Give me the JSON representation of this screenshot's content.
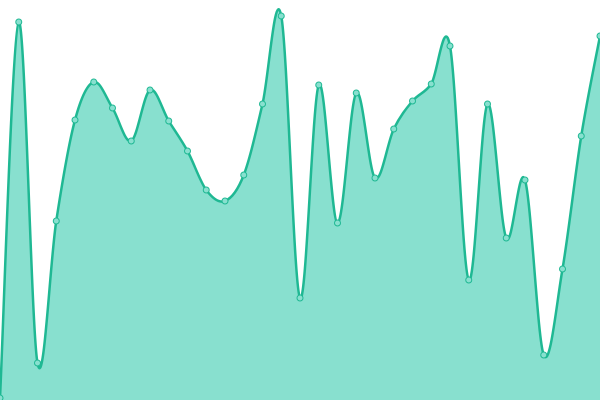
{
  "chart_data": {
    "type": "area",
    "x": [
      0,
      1,
      2,
      3,
      4,
      5,
      6,
      7,
      8,
      9,
      10,
      11,
      12,
      13,
      14,
      15,
      16,
      17,
      18,
      19,
      20,
      21,
      22,
      23,
      24,
      25,
      26,
      27,
      28,
      29,
      30,
      31,
      32
    ],
    "series": [
      {
        "color": "#1fb893",
        "fill": "#88e0cf",
        "values": [
          2,
          378,
          37,
          179,
          280,
          318,
          292,
          259,
          310,
          279,
          249,
          210,
          199,
          225,
          296,
          384,
          102,
          315,
          177,
          307,
          222,
          271,
          299,
          316,
          354,
          120,
          296,
          162,
          220,
          45,
          131,
          264,
          364
        ]
      }
    ],
    "xlim": [
      0,
      32
    ],
    "ylim": [
      0,
      400
    ]
  }
}
